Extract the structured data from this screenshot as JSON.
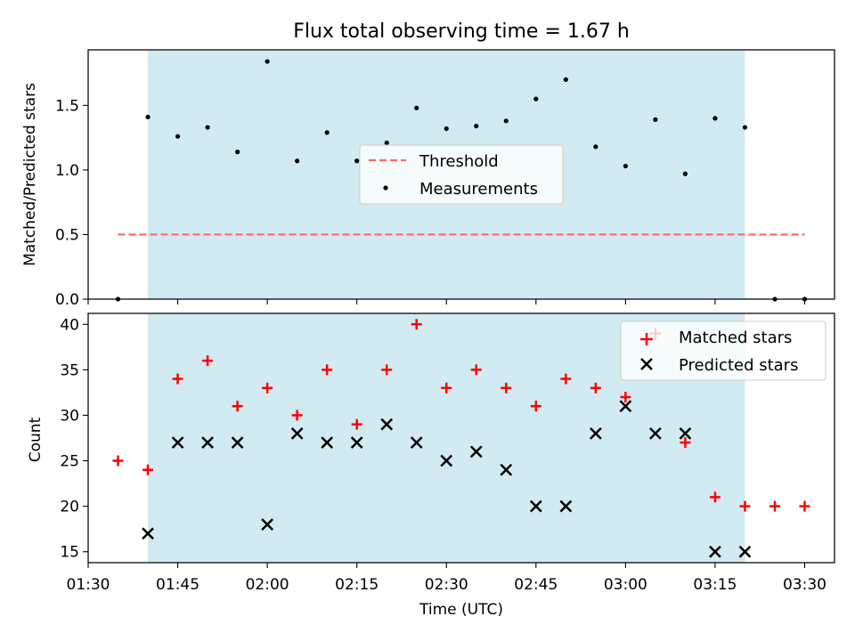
{
  "chart_data": {
    "title": "Flux total observing time = 1.67 h",
    "xlabel": "Time (UTC)",
    "x_ticks": [
      "01:30",
      "01:45",
      "02:00",
      "02:15",
      "02:30",
      "02:45",
      "03:00",
      "03:15",
      "03:30"
    ],
    "highlight_span": [
      "01:40",
      "03:20"
    ],
    "highlight_color": "#add8e6",
    "top": {
      "type": "scatter",
      "ylabel": "Matched/Predicted stars",
      "ylim": [
        0,
        1.93
      ],
      "y_ticks": [
        "0.0",
        "0.5",
        "1.0",
        "1.5"
      ],
      "threshold": {
        "name": "Threshold",
        "value": 0.5,
        "x_range": [
          "01:35",
          "03:30"
        ],
        "color": "#ff6666"
      },
      "series": [
        {
          "name": "Measurements",
          "color": "#000000",
          "x": [
            "01:35",
            "01:40",
            "01:45",
            "01:50",
            "01:55",
            "02:00",
            "02:05",
            "02:10",
            "02:15",
            "02:20",
            "02:25",
            "02:30",
            "02:35",
            "02:40",
            "02:45",
            "02:50",
            "02:55",
            "03:00",
            "03:05",
            "03:10",
            "03:15",
            "03:20",
            "03:25",
            "03:30"
          ],
          "y": [
            0.0,
            1.41,
            1.26,
            1.33,
            1.14,
            1.84,
            1.07,
            1.29,
            1.07,
            1.21,
            1.48,
            1.32,
            1.34,
            1.38,
            1.55,
            1.7,
            1.18,
            1.03,
            1.39,
            0.97,
            1.4,
            1.33,
            0.0,
            0.0
          ]
        }
      ],
      "legend_position": "center"
    },
    "bottom": {
      "type": "scatter",
      "ylabel": "Count",
      "ylim": [
        13.8,
        41.2
      ],
      "y_ticks": [
        "15",
        "20",
        "25",
        "30",
        "35",
        "40"
      ],
      "legend_position": "upper right",
      "series": [
        {
          "name": "Matched stars",
          "marker": "plus",
          "color": "#ff0000",
          "x": [
            "01:35",
            "01:40",
            "01:45",
            "01:50",
            "01:55",
            "02:00",
            "02:05",
            "02:10",
            "02:15",
            "02:20",
            "02:25",
            "02:30",
            "02:35",
            "02:40",
            "02:45",
            "02:50",
            "02:55",
            "03:00",
            "03:05",
            "03:10",
            "03:15",
            "03:20",
            "03:25",
            "03:30"
          ],
          "y": [
            25,
            24,
            34,
            36,
            31,
            33,
            30,
            35,
            29,
            35,
            40,
            33,
            35,
            33,
            31,
            34,
            33,
            32,
            39,
            27,
            21,
            20,
            20,
            20
          ]
        },
        {
          "name": "Predicted stars",
          "marker": "x",
          "color": "#000000",
          "x": [
            "01:40",
            "01:45",
            "01:50",
            "01:55",
            "02:00",
            "02:05",
            "02:10",
            "02:15",
            "02:20",
            "02:25",
            "02:30",
            "02:35",
            "02:40",
            "02:45",
            "02:50",
            "02:55",
            "03:00",
            "03:05",
            "03:10",
            "03:15",
            "03:20"
          ],
          "y": [
            17,
            27,
            27,
            27,
            18,
            28,
            27,
            27,
            29,
            27,
            25,
            26,
            24,
            20,
            20,
            28,
            31,
            28,
            28,
            15,
            15
          ]
        }
      ]
    }
  }
}
